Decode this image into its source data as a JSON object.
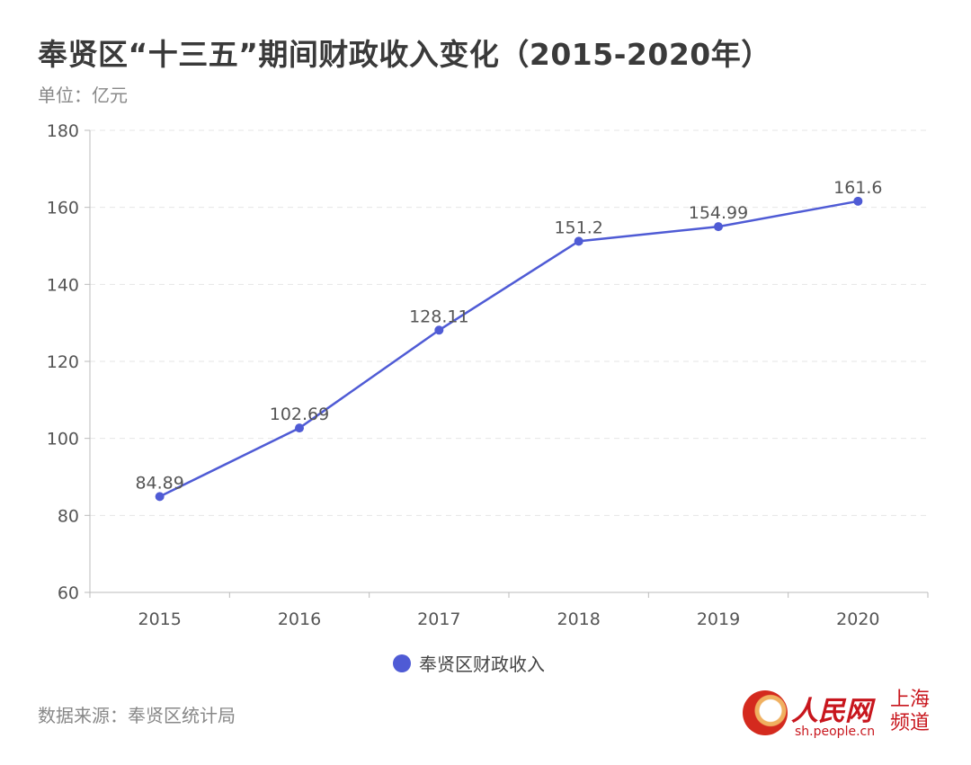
{
  "title": "奉贤区“十三五”期间财政收入变化（2015-2020年）",
  "unit": "单位：亿元",
  "source": "数据来源：奉贤区统计局",
  "logo": {
    "name": "人民网",
    "url": "sh.people.cn",
    "channel": "上海频道"
  },
  "colors": {
    "series": "#4f5bd5",
    "axis": "#bbbbbb",
    "grid": "#e6e6e6",
    "text": "#555555"
  },
  "chart_data": {
    "type": "line",
    "title": "奉贤区“十三五”期间财政收入变化（2015-2020年）",
    "ylabel": "单位：亿元",
    "xlabel": "",
    "categories": [
      "2015",
      "2016",
      "2017",
      "2018",
      "2019",
      "2020"
    ],
    "series": [
      {
        "name": "奉贤区财政收入",
        "values": [
          84.89,
          102.69,
          128.11,
          151.2,
          154.99,
          161.6
        ],
        "labels": [
          "84.89",
          "102.69",
          "128.11",
          "151.2",
          "154.99",
          "161.6"
        ]
      }
    ],
    "ylim": [
      60,
      180
    ],
    "yticks": [
      "60",
      "80",
      "100",
      "120",
      "140",
      "160",
      "180"
    ],
    "grid": true,
    "legend": "bottom-center"
  }
}
